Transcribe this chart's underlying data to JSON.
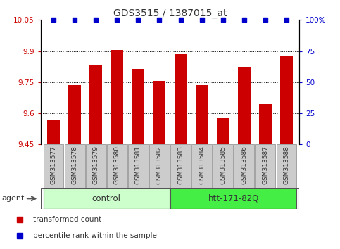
{
  "title": "GDS3515 / 1387015_at",
  "samples": [
    "GSM313577",
    "GSM313578",
    "GSM313579",
    "GSM313580",
    "GSM313581",
    "GSM313582",
    "GSM313583",
    "GSM313584",
    "GSM313585",
    "GSM313586",
    "GSM313587",
    "GSM313588"
  ],
  "bar_values": [
    9.565,
    9.735,
    9.83,
    9.905,
    9.815,
    9.755,
    9.885,
    9.735,
    9.575,
    9.825,
    9.645,
    9.875
  ],
  "percentile_values": [
    100,
    100,
    100,
    100,
    100,
    100,
    100,
    100,
    100,
    100,
    100,
    100
  ],
  "bar_color": "#cc0000",
  "percentile_color": "#0000cc",
  "ylim_left": [
    9.45,
    10.05
  ],
  "ylim_right": [
    0,
    100
  ],
  "yticks_left": [
    9.45,
    9.6,
    9.75,
    9.9,
    10.05
  ],
  "yticks_right": [
    0,
    25,
    50,
    75,
    100
  ],
  "ytick_labels_left": [
    "9.45",
    "9.6",
    "9.75",
    "9.9",
    "10.05"
  ],
  "ytick_labels_right": [
    "0",
    "25",
    "50",
    "75",
    "100%"
  ],
  "groups": [
    {
      "label": "control",
      "start": 0,
      "end": 5
    },
    {
      "label": "htt-171-82Q",
      "start": 6,
      "end": 11
    }
  ],
  "group_colors": [
    "#ccffcc",
    "#44ee44"
  ],
  "agent_label": "agent",
  "bar_width": 0.6,
  "grid_linestyle": ":",
  "grid_color": "#000000",
  "sample_bg_color": "#cccccc",
  "legend_items": [
    {
      "label": "transformed count",
      "color": "#cc0000"
    },
    {
      "label": "percentile rank within the sample",
      "color": "#0000cc"
    }
  ]
}
